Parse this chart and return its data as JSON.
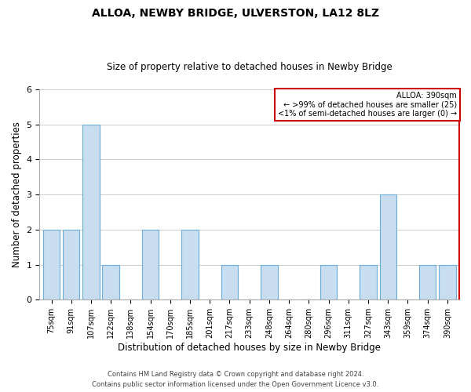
{
  "title": "ALLOA, NEWBY BRIDGE, ULVERSTON, LA12 8LZ",
  "subtitle": "Size of property relative to detached houses in Newby Bridge",
  "xlabel": "Distribution of detached houses by size in Newby Bridge",
  "ylabel": "Number of detached properties",
  "bar_color": "#c8ddf0",
  "bar_edge_color": "#6baed6",
  "categories": [
    "75sqm",
    "91sqm",
    "107sqm",
    "122sqm",
    "138sqm",
    "154sqm",
    "170sqm",
    "185sqm",
    "201sqm",
    "217sqm",
    "233sqm",
    "248sqm",
    "264sqm",
    "280sqm",
    "296sqm",
    "311sqm",
    "327sqm",
    "343sqm",
    "359sqm",
    "374sqm",
    "390sqm"
  ],
  "values": [
    2,
    2,
    5,
    1,
    0,
    2,
    0,
    2,
    0,
    1,
    0,
    1,
    0,
    0,
    1,
    0,
    1,
    3,
    0,
    1,
    1
  ],
  "ylim": [
    0,
    6
  ],
  "yticks": [
    0,
    1,
    2,
    3,
    4,
    5,
    6
  ],
  "annotation_title": "ALLOA: 390sqm",
  "annotation_line2": "← >99% of detached houses are smaller (25)",
  "annotation_line3": "<1% of semi-detached houses are larger (0) →",
  "annotation_box_edge_color": "#cc0000",
  "annotation_box_facecolor": "#ffffff",
  "footer_line1": "Contains HM Land Registry data © Crown copyright and database right 2024.",
  "footer_line2": "Contains public sector information licensed under the Open Government Licence v3.0.",
  "background_color": "#ffffff",
  "grid_color": "#cccccc",
  "title_fontsize": 10,
  "subtitle_fontsize": 8.5,
  "axis_label_fontsize": 8.5,
  "tick_fontsize": 8,
  "footer_fontsize": 6
}
